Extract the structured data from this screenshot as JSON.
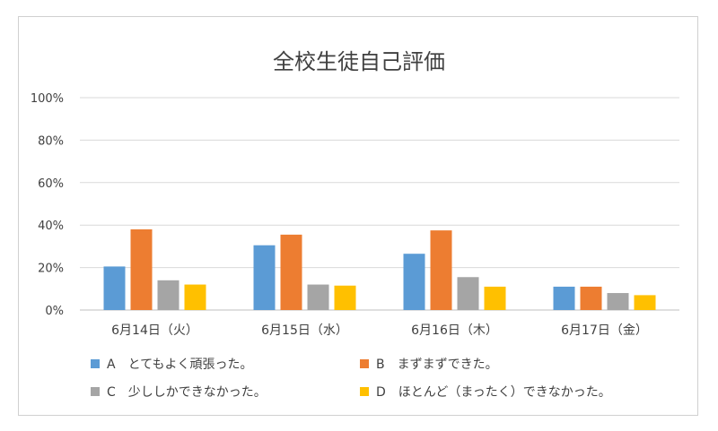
{
  "chart_data": {
    "type": "bar",
    "title": "全校生徒自己評価",
    "categories": [
      "6月14日（火）",
      "6月15日（水）",
      "6月16日（木）",
      "6月17日（金）"
    ],
    "series": [
      {
        "name": "A　とてもよく頑張った。",
        "color": "#5b9bd5",
        "values": [
          20.5,
          30.5,
          26.5,
          11
        ]
      },
      {
        "name": "B　まずまずできた。",
        "color": "#ed7d31",
        "values": [
          38,
          35.5,
          37.5,
          11
        ]
      },
      {
        "name": "C　少ししかできなかった。",
        "color": "#a5a5a5",
        "values": [
          14,
          12,
          15.5,
          8
        ]
      },
      {
        "name": "D　ほとんど（まったく）できなかった。",
        "color": "#ffc000",
        "values": [
          12,
          11.5,
          11,
          7
        ]
      }
    ],
    "yticks": [
      "0%",
      "20%",
      "40%",
      "60%",
      "80%",
      "100%"
    ],
    "ylim": [
      0,
      100
    ],
    "grid": true,
    "legend_position": "bottom"
  }
}
